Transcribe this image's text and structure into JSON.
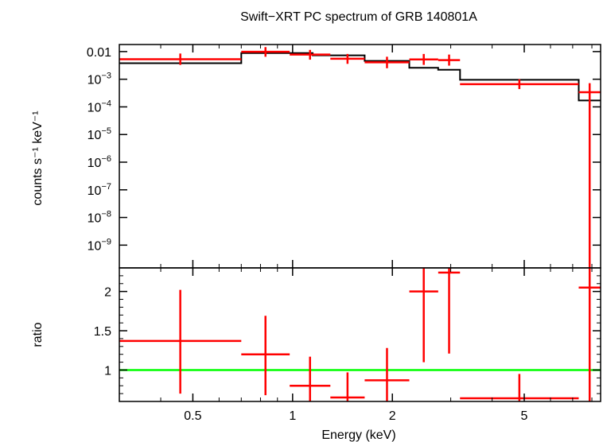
{
  "chart_data": {
    "type": "scatter",
    "title": "Swift−XRT PC spectrum of GRB 140801A",
    "xlabel": "Energy (keV)",
    "x_scale": "log",
    "xlim": [
      0.3,
      8.5
    ],
    "x_ticks": [
      {
        "value": 0.5,
        "label": "0.5"
      },
      {
        "value": 1,
        "label": "1"
      },
      {
        "value": 2,
        "label": "2"
      },
      {
        "value": 5,
        "label": "5"
      }
    ],
    "panels": [
      {
        "name": "spectrum",
        "ylabel": "counts s⁻¹ keV⁻¹",
        "y_scale": "log",
        "ylim": [
          1.5e-10,
          0.018
        ],
        "y_ticks": [
          {
            "value": 0.01,
            "base": "0.01",
            "exp": ""
          },
          {
            "value": 0.001,
            "base": "10",
            "exp": "−3"
          },
          {
            "value": 0.0001,
            "base": "10",
            "exp": "−4"
          },
          {
            "value": 1e-05,
            "base": "10",
            "exp": "−5"
          },
          {
            "value": 1e-06,
            "base": "10",
            "exp": "−6"
          },
          {
            "value": 1e-07,
            "base": "10",
            "exp": "−7"
          },
          {
            "value": 1e-08,
            "base": "10",
            "exp": "−8"
          },
          {
            "value": 1e-09,
            "base": "10",
            "exp": "−9"
          }
        ],
        "data_series": {
          "name": "data",
          "color": "#ff0000",
          "points": [
            {
              "xlo": 0.3,
              "xhi": 0.7,
              "y": 0.0053,
              "ylo": 0.0033,
              "yhi": 0.0085
            },
            {
              "xlo": 0.7,
              "xhi": 0.98,
              "y": 0.0098,
              "ylo": 0.0065,
              "yhi": 0.0145
            },
            {
              "xlo": 0.98,
              "xhi": 1.3,
              "y": 0.0078,
              "ylo": 0.0051,
              "yhi": 0.0115
            },
            {
              "xlo": 1.3,
              "xhi": 1.65,
              "y": 0.0055,
              "ylo": 0.0036,
              "yhi": 0.0082
            },
            {
              "xlo": 1.65,
              "xhi": 2.25,
              "y": 0.0041,
              "ylo": 0.0025,
              "yhi": 0.0065
            },
            {
              "xlo": 2.25,
              "xhi": 2.75,
              "y": 0.0052,
              "ylo": 0.0033,
              "yhi": 0.0082
            },
            {
              "xlo": 2.75,
              "xhi": 3.2,
              "y": 0.0049,
              "ylo": 0.0031,
              "yhi": 0.0078
            },
            {
              "xlo": 3.2,
              "xhi": 7.3,
              "y": 0.00066,
              "ylo": 0.00044,
              "yhi": 0.001
            },
            {
              "xlo": 7.3,
              "xhi": 8.5,
              "y": 0.00034,
              "ylo": 1.5e-10,
              "yhi": 0.00072
            }
          ]
        },
        "model_series": {
          "name": "model",
          "color": "#000000",
          "steps": [
            {
              "xlo": 0.3,
              "xhi": 0.7,
              "y": 0.0038
            },
            {
              "xlo": 0.7,
              "xhi": 1.15,
              "y": 0.0088
            },
            {
              "xlo": 1.15,
              "xhi": 1.65,
              "y": 0.0073
            },
            {
              "xlo": 1.65,
              "xhi": 2.25,
              "y": 0.0046
            },
            {
              "xlo": 2.25,
              "xhi": 2.75,
              "y": 0.0026
            },
            {
              "xlo": 2.75,
              "xhi": 3.2,
              "y": 0.0022
            },
            {
              "xlo": 3.2,
              "xhi": 7.3,
              "y": 0.00095
            },
            {
              "xlo": 7.3,
              "xhi": 8.5,
              "y": 0.00017
            }
          ]
        }
      },
      {
        "name": "ratio",
        "ylabel": "ratio",
        "y_scale": "linear",
        "ylim": [
          0.6,
          2.3
        ],
        "y_ticks": [
          {
            "value": 1,
            "label": "1"
          },
          {
            "value": 1.5,
            "label": "1.5"
          },
          {
            "value": 2,
            "label": "2"
          }
        ],
        "reference_line": {
          "y": 1,
          "color": "#00ff00"
        },
        "data_series": {
          "name": "ratio",
          "color": "#ff0000",
          "points": [
            {
              "xlo": 0.3,
              "xhi": 0.7,
              "y": 1.37,
              "ylo": 0.7,
              "yhi": 2.02
            },
            {
              "xlo": 0.7,
              "xhi": 0.98,
              "y": 1.2,
              "ylo": 0.68,
              "yhi": 1.69
            },
            {
              "xlo": 0.98,
              "xhi": 1.3,
              "y": 0.8,
              "ylo": 0.43,
              "yhi": 1.17
            },
            {
              "xlo": 1.3,
              "xhi": 1.65,
              "y": 0.65,
              "ylo": 0.38,
              "yhi": 0.97
            },
            {
              "xlo": 1.65,
              "xhi": 2.25,
              "y": 0.87,
              "ylo": 0.5,
              "yhi": 1.28
            },
            {
              "xlo": 2.25,
              "xhi": 2.75,
              "y": 2.0,
              "ylo": 1.1,
              "yhi": 2.3
            },
            {
              "xlo": 2.75,
              "xhi": 3.2,
              "y": 2.24,
              "ylo": 1.21,
              "yhi": 2.3
            },
            {
              "xlo": 3.2,
              "xhi": 7.3,
              "y": 0.64,
              "ylo": 0.4,
              "yhi": 0.95
            },
            {
              "xlo": 7.3,
              "xhi": 8.5,
              "y": 2.05,
              "ylo": 0.4,
              "yhi": 2.3
            }
          ]
        }
      }
    ]
  }
}
